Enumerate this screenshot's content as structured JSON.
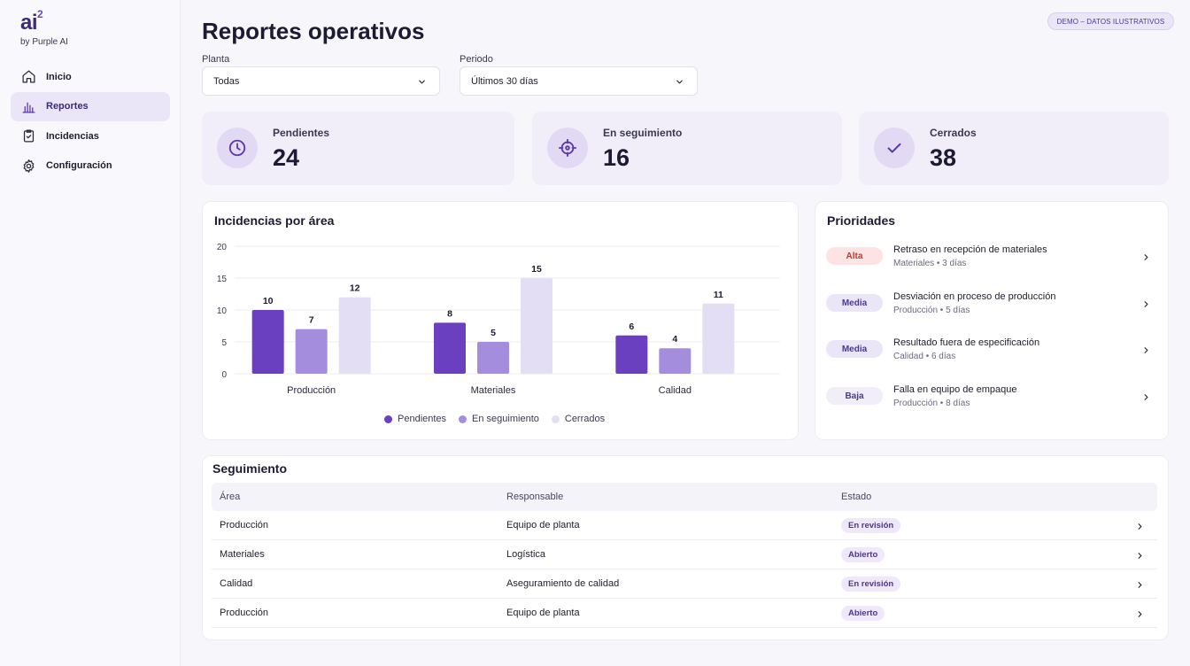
{
  "brand": {
    "logo_text": "ai",
    "logo_sup": "2",
    "tagline": "by Purple AI"
  },
  "sidebar": {
    "items": [
      {
        "label": "Inicio",
        "icon": "home-icon",
        "active": false
      },
      {
        "label": "Reportes",
        "icon": "bar-chart-icon",
        "active": true
      },
      {
        "label": "Incidencias",
        "icon": "clipboard-icon",
        "active": false
      },
      {
        "label": "Configuración",
        "icon": "gear-icon",
        "active": false
      }
    ]
  },
  "header": {
    "title": "Reportes operativos",
    "demo_badge": "DEMO – DATOS ILUSTRATIVOS"
  },
  "filters": {
    "plant": {
      "label": "Planta",
      "value": "Todas"
    },
    "period": {
      "label": "Periodo",
      "value": "Últimos 30 días"
    }
  },
  "stats": [
    {
      "label": "Pendientes",
      "value": "24",
      "icon": "clock-icon"
    },
    {
      "label": "En seguimiento",
      "value": "16",
      "icon": "crosshair-icon"
    },
    {
      "label": "Cerrados",
      "value": "38",
      "icon": "check-icon"
    }
  ],
  "chart_panel": {
    "title": "Incidencias por área"
  },
  "chart_data": {
    "type": "bar",
    "title": "Incidencias por área",
    "categories": [
      "Producción",
      "Materiales",
      "Calidad"
    ],
    "series": [
      {
        "name": "Pendientes",
        "values": [
          10,
          8,
          6
        ],
        "color": "#6a3fc0"
      },
      {
        "name": "En seguimiento",
        "values": [
          7,
          5,
          4
        ],
        "color": "#a48ddd"
      },
      {
        "name": "Cerrados",
        "values": [
          12,
          15,
          11
        ],
        "color": "#e4def4"
      }
    ],
    "ylim": [
      0,
      20
    ],
    "yticks": [
      "20",
      "15",
      "10",
      "5",
      "0"
    ],
    "grid": true,
    "legend": "bottom",
    "data_labels": true
  },
  "priorities": {
    "title": "Prioridades",
    "items": [
      {
        "badge": "Alta",
        "level": "high",
        "title": "Retraso en recepción de materiales",
        "meta": "Materiales • 3 días"
      },
      {
        "badge": "Media",
        "level": "medium",
        "title": "Desviación en proceso de producción",
        "meta": "Producción • 5 días"
      },
      {
        "badge": "Media",
        "level": "medium",
        "title": "Resultado fuera de especificación",
        "meta": "Calidad • 6 días"
      },
      {
        "badge": "Baja",
        "level": "low",
        "title": "Falla en equipo de empaque",
        "meta": "Producción • 8 días"
      }
    ]
  },
  "tracking": {
    "title": "Seguimiento",
    "columns": [
      "Área",
      "Responsable",
      "Estado"
    ],
    "rows": [
      {
        "area": "Producción",
        "owner": "Equipo de planta",
        "status": "En revisión"
      },
      {
        "area": "Materiales",
        "owner": "Logística",
        "status": "Abierto"
      },
      {
        "area": "Calidad",
        "owner": "Aseguramiento de calidad",
        "status": "En revisión"
      },
      {
        "area": "Producción",
        "owner": "Equipo de planta",
        "status": "Abierto"
      }
    ]
  },
  "colors": {
    "accent": "#6a3fc0",
    "high_badge_bg": "#fde3e3",
    "high_badge_text": "#c0392b",
    "medium_badge_bg": "#ebe5f8",
    "low_badge_bg": "#f1eef9"
  }
}
